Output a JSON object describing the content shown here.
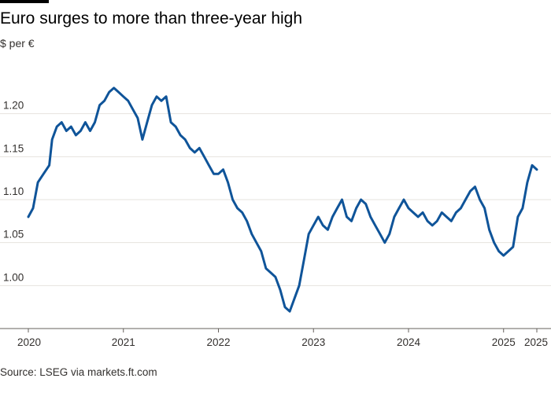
{
  "header": {
    "title": "Euro surges to more than three-year high",
    "subtitle": "$ per €"
  },
  "footer": {
    "source": "Source: LSEG via markets.ft.com"
  },
  "colors": {
    "line": "#0f5499",
    "gridline": "#e6e3de",
    "axis": "#66605c",
    "topbar": "#000000"
  },
  "chart_data": {
    "type": "line",
    "title": "Euro surges to more than three-year high",
    "ylabel": "$ per €",
    "xlabel": "",
    "ylim": [
      0.95,
      1.25
    ],
    "yticks": [
      1.0,
      1.05,
      1.1,
      1.15,
      1.2
    ],
    "ytick_labels": [
      "1.00",
      "1.05",
      "1.10",
      "1.15",
      "1.20"
    ],
    "xticks": [
      {
        "label": "2020",
        "x": 2020.0
      },
      {
        "label": "2021",
        "x": 2021.0
      },
      {
        "label": "2022",
        "x": 2022.0
      },
      {
        "label": "2023",
        "x": 2023.0
      },
      {
        "label": "2024",
        "x": 2024.0
      },
      {
        "label": "2025",
        "x": 2025.0
      },
      {
        "label": "2025",
        "x": 2025.35
      }
    ],
    "grid": "horizontal",
    "series": [
      {
        "values": [
          [
            2020.0,
            1.08
          ],
          [
            2020.05,
            1.09
          ],
          [
            2020.1,
            1.12
          ],
          [
            2020.16,
            1.13
          ],
          [
            2020.22,
            1.14
          ],
          [
            2020.25,
            1.17
          ],
          [
            2020.3,
            1.185
          ],
          [
            2020.35,
            1.19
          ],
          [
            2020.4,
            1.18
          ],
          [
            2020.45,
            1.185
          ],
          [
            2020.5,
            1.175
          ],
          [
            2020.55,
            1.18
          ],
          [
            2020.6,
            1.19
          ],
          [
            2020.65,
            1.18
          ],
          [
            2020.7,
            1.19
          ],
          [
            2020.75,
            1.21
          ],
          [
            2020.8,
            1.215
          ],
          [
            2020.85,
            1.225
          ],
          [
            2020.9,
            1.23
          ],
          [
            2020.95,
            1.225
          ],
          [
            2021.0,
            1.22
          ],
          [
            2021.05,
            1.215
          ],
          [
            2021.1,
            1.205
          ],
          [
            2021.15,
            1.195
          ],
          [
            2021.2,
            1.17
          ],
          [
            2021.25,
            1.19
          ],
          [
            2021.3,
            1.21
          ],
          [
            2021.35,
            1.22
          ],
          [
            2021.4,
            1.215
          ],
          [
            2021.45,
            1.22
          ],
          [
            2021.5,
            1.19
          ],
          [
            2021.55,
            1.185
          ],
          [
            2021.6,
            1.175
          ],
          [
            2021.65,
            1.17
          ],
          [
            2021.7,
            1.16
          ],
          [
            2021.75,
            1.155
          ],
          [
            2021.8,
            1.16
          ],
          [
            2021.85,
            1.15
          ],
          [
            2021.9,
            1.14
          ],
          [
            2021.95,
            1.13
          ],
          [
            2022.0,
            1.13
          ],
          [
            2022.05,
            1.135
          ],
          [
            2022.1,
            1.12
          ],
          [
            2022.15,
            1.1
          ],
          [
            2022.2,
            1.09
          ],
          [
            2022.25,
            1.085
          ],
          [
            2022.3,
            1.075
          ],
          [
            2022.35,
            1.06
          ],
          [
            2022.4,
            1.05
          ],
          [
            2022.45,
            1.04
          ],
          [
            2022.5,
            1.02
          ],
          [
            2022.55,
            1.015
          ],
          [
            2022.6,
            1.01
          ],
          [
            2022.65,
            0.995
          ],
          [
            2022.7,
            0.975
          ],
          [
            2022.75,
            0.97
          ],
          [
            2022.8,
            0.985
          ],
          [
            2022.85,
            1.0
          ],
          [
            2022.9,
            1.03
          ],
          [
            2022.95,
            1.06
          ],
          [
            2023.0,
            1.07
          ],
          [
            2023.05,
            1.08
          ],
          [
            2023.1,
            1.07
          ],
          [
            2023.15,
            1.065
          ],
          [
            2023.2,
            1.08
          ],
          [
            2023.25,
            1.09
          ],
          [
            2023.3,
            1.1
          ],
          [
            2023.35,
            1.08
          ],
          [
            2023.4,
            1.075
          ],
          [
            2023.45,
            1.09
          ],
          [
            2023.5,
            1.1
          ],
          [
            2023.55,
            1.095
          ],
          [
            2023.6,
            1.08
          ],
          [
            2023.65,
            1.07
          ],
          [
            2023.7,
            1.06
          ],
          [
            2023.75,
            1.05
          ],
          [
            2023.8,
            1.06
          ],
          [
            2023.85,
            1.08
          ],
          [
            2023.9,
            1.09
          ],
          [
            2023.95,
            1.1
          ],
          [
            2024.0,
            1.09
          ],
          [
            2024.05,
            1.085
          ],
          [
            2024.1,
            1.08
          ],
          [
            2024.15,
            1.085
          ],
          [
            2024.2,
            1.075
          ],
          [
            2024.25,
            1.07
          ],
          [
            2024.3,
            1.075
          ],
          [
            2024.35,
            1.085
          ],
          [
            2024.4,
            1.08
          ],
          [
            2024.45,
            1.075
          ],
          [
            2024.5,
            1.085
          ],
          [
            2024.55,
            1.09
          ],
          [
            2024.6,
            1.1
          ],
          [
            2024.65,
            1.11
          ],
          [
            2024.7,
            1.115
          ],
          [
            2024.75,
            1.1
          ],
          [
            2024.8,
            1.09
          ],
          [
            2024.85,
            1.065
          ],
          [
            2024.9,
            1.05
          ],
          [
            2024.95,
            1.04
          ],
          [
            2025.0,
            1.035
          ],
          [
            2025.05,
            1.04
          ],
          [
            2025.1,
            1.045
          ],
          [
            2025.15,
            1.08
          ],
          [
            2025.2,
            1.09
          ],
          [
            2025.25,
            1.12
          ],
          [
            2025.3,
            1.14
          ],
          [
            2025.35,
            1.135
          ]
        ]
      }
    ]
  }
}
